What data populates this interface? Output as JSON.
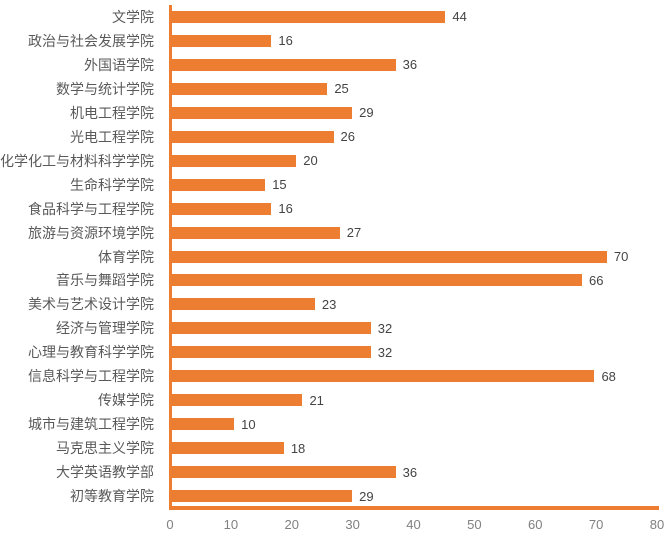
{
  "chart_data": {
    "type": "bar",
    "orientation": "horizontal",
    "categories": [
      "文学院",
      "政治与社会发展学院",
      "外国语学院",
      "数学与统计学院",
      "机电工程学院",
      "光电工程学院",
      "化学化工与材料科学学院",
      "生命科学学院",
      "食品科学与工程学院",
      "旅游与资源环境学院",
      "体育学院",
      "音乐与舞蹈学院",
      "美术与艺术设计学院",
      "经济与管理学院",
      "心理与教育科学学院",
      "信息科学与工程学院",
      "传媒学院",
      "城市与建筑工程学院",
      "马克思主义学院",
      "大学英语教学部",
      "初等教育学院"
    ],
    "values": [
      44,
      16,
      36,
      25,
      29,
      26,
      20,
      15,
      16,
      27,
      70,
      66,
      23,
      32,
      32,
      68,
      21,
      10,
      18,
      36,
      29
    ],
    "xlim": [
      0,
      80
    ],
    "x_ticks": [
      0,
      10,
      20,
      30,
      40,
      50,
      60,
      70,
      80
    ],
    "data_labels": true,
    "grid": false,
    "legend": false,
    "colors": {
      "bar": "#ED7D31",
      "axis_line": "#ED7D31",
      "category_label": "#595959",
      "value_label": "#444444",
      "tick_label": "#808080",
      "background": "#FFFFFF"
    }
  }
}
